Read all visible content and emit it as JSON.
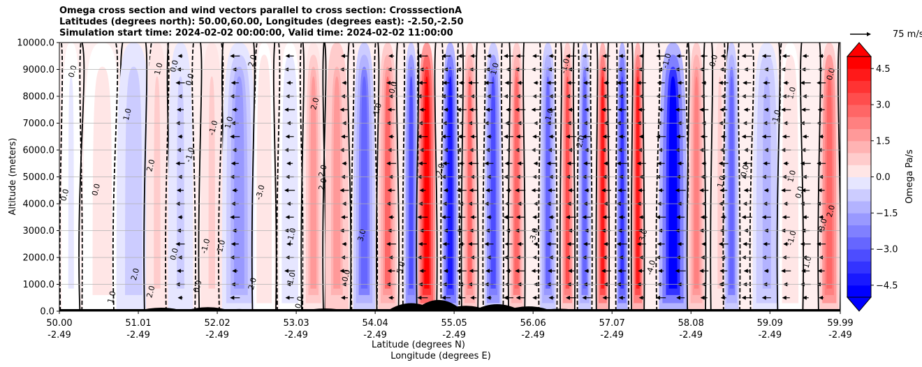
{
  "chart_data": {
    "type": "heatmap",
    "title_lines": [
      "Omega cross section and wind vectors parallel to cross section: CrosssectionA",
      "Latitudes (degrees north): 50.00,60.00, Longitudes (degrees east): -2.50,-2.50",
      "Simulation start time: 2024-02-02 00:00:00, Valid time: 2024-02-02 11:00:00"
    ],
    "ylabel": "Altitude (meters)",
    "xlabel_lines": [
      "Latitude (degrees N)",
      "Longitude (degrees E)"
    ],
    "ylim": [
      0,
      10000
    ],
    "yticks": [
      {
        "value": 0,
        "label": "0.0"
      },
      {
        "value": 1000,
        "label": "1000.0"
      },
      {
        "value": 2000,
        "label": "2000.0"
      },
      {
        "value": 3000,
        "label": "3000.0"
      },
      {
        "value": 4000,
        "label": "4000.0"
      },
      {
        "value": 5000,
        "label": "5000.0"
      },
      {
        "value": 6000,
        "label": "6000.0"
      },
      {
        "value": 7000,
        "label": "7000.0"
      },
      {
        "value": 8000,
        "label": "8000.0"
      },
      {
        "value": 9000,
        "label": "9000.0"
      },
      {
        "value": 10000,
        "label": "10000.0"
      }
    ],
    "xlim": [
      50.0,
      59.99
    ],
    "xticks": [
      {
        "value": 50.0,
        "lat": "50.00",
        "lon": "-2.49"
      },
      {
        "value": 51.01,
        "lat": "51.01",
        "lon": "-2.49"
      },
      {
        "value": 52.02,
        "lat": "52.02",
        "lon": "-2.49"
      },
      {
        "value": 53.03,
        "lat": "53.03",
        "lon": "-2.49"
      },
      {
        "value": 54.04,
        "lat": "54.04",
        "lon": "-2.49"
      },
      {
        "value": 55.05,
        "lat": "55.05",
        "lon": "-2.49"
      },
      {
        "value": 56.06,
        "lat": "56.06",
        "lon": "-2.49"
      },
      {
        "value": 57.07,
        "lat": "57.07",
        "lon": "-2.49"
      },
      {
        "value": 58.08,
        "lat": "58.08",
        "lon": "-2.49"
      },
      {
        "value": 59.09,
        "lat": "59.09",
        "lon": "-2.49"
      },
      {
        "value": 59.99,
        "lat": "59.99",
        "lon": "-2.49"
      }
    ],
    "grid": true,
    "colorbar": {
      "label": "Omega Pa/s",
      "range": [
        -5,
        5
      ],
      "ticks": [
        "4.5",
        "3.0",
        "1.5",
        "0.0",
        "−1.5",
        "−3.0",
        "−4.5"
      ],
      "tick_values": [
        4.5,
        3.0,
        1.5,
        0.0,
        -1.5,
        -3.0,
        -4.5
      ],
      "levels": 20
    },
    "quiver_key": "75 m/s",
    "bands": [
      {
        "x": 50.15,
        "w": 0.12,
        "v": -0.3
      },
      {
        "x": 50.55,
        "w": 0.25,
        "v": 0.4
      },
      {
        "x": 50.95,
        "w": 0.22,
        "v": -1.2
      },
      {
        "x": 51.25,
        "w": 0.14,
        "v": 0.8
      },
      {
        "x": 51.55,
        "w": 0.16,
        "v": -0.8
      },
      {
        "x": 51.95,
        "w": 0.14,
        "v": 0.9
      },
      {
        "x": 52.3,
        "w": 0.22,
        "v": -2.0
      },
      {
        "x": 52.62,
        "w": 0.13,
        "v": 0.5
      },
      {
        "x": 52.95,
        "w": 0.14,
        "v": -0.6
      },
      {
        "x": 53.25,
        "w": 0.13,
        "v": 1.8
      },
      {
        "x": 53.55,
        "w": 0.15,
        "v": 2.2
      },
      {
        "x": 53.9,
        "w": 0.14,
        "v": -3.0
      },
      {
        "x": 54.2,
        "w": 0.12,
        "v": 2.8
      },
      {
        "x": 54.5,
        "w": 0.09,
        "v": -3.5
      },
      {
        "x": 54.7,
        "w": 0.11,
        "v": 5.0
      },
      {
        "x": 55.0,
        "w": 0.1,
        "v": -4.5
      },
      {
        "x": 55.25,
        "w": 0.09,
        "v": 2.8
      },
      {
        "x": 55.55,
        "w": 0.11,
        "v": -3.5
      },
      {
        "x": 55.85,
        "w": 0.09,
        "v": 3.0
      },
      {
        "x": 56.25,
        "w": 0.1,
        "v": -2.8
      },
      {
        "x": 56.5,
        "w": 0.08,
        "v": 3.5
      },
      {
        "x": 56.72,
        "w": 0.08,
        "v": -3.0
      },
      {
        "x": 56.95,
        "w": 0.07,
        "v": 4.5
      },
      {
        "x": 57.2,
        "w": 0.07,
        "v": -4.0
      },
      {
        "x": 57.4,
        "w": 0.07,
        "v": 4.5
      },
      {
        "x": 57.85,
        "w": 0.18,
        "v": -4.8
      },
      {
        "x": 58.15,
        "w": 0.1,
        "v": 2.5
      },
      {
        "x": 58.45,
        "w": 0.1,
        "v": 0.8
      },
      {
        "x": 58.6,
        "w": 0.09,
        "v": -3.0
      },
      {
        "x": 59.05,
        "w": 0.18,
        "v": -1.5
      },
      {
        "x": 59.35,
        "w": 0.14,
        "v": 0.7
      },
      {
        "x": 59.85,
        "w": 0.12,
        "v": 3.2
      }
    ],
    "contour_labels": [
      {
        "text": "0.0",
        "x": 50.2,
        "alt": 8900
      },
      {
        "text": "0.0",
        "x": 50.1,
        "alt": 4300
      },
      {
        "text": "0.0",
        "x": 50.5,
        "alt": 4500
      },
      {
        "text": "1.0",
        "x": 51.3,
        "alt": 9000
      },
      {
        "text": "1.0",
        "x": 50.9,
        "alt": 7300
      },
      {
        "text": "2.0",
        "x": 51.2,
        "alt": 5400
      },
      {
        "text": "2.0",
        "x": 51.0,
        "alt": 1350
      },
      {
        "text": "2.0",
        "x": 51.2,
        "alt": 700
      },
      {
        "text": "1.0",
        "x": 50.7,
        "alt": 500
      },
      {
        "text": "0.0",
        "x": 51.5,
        "alt": 9100
      },
      {
        "text": "0.0",
        "x": 51.7,
        "alt": 8600
      },
      {
        "text": "-1.0",
        "x": 51.7,
        "alt": 5800
      },
      {
        "text": "0.0",
        "x": 51.5,
        "alt": 2100
      },
      {
        "text": "-1.0",
        "x": 51.9,
        "alt": 2400
      },
      {
        "text": "1.0",
        "x": 52.1,
        "alt": 2400
      },
      {
        "text": "0.0",
        "x": 51.8,
        "alt": 900
      },
      {
        "text": "2.0",
        "x": 52.5,
        "alt": 9300
      },
      {
        "text": "1.0",
        "x": 52.2,
        "alt": 7000
      },
      {
        "text": "-1.0",
        "x": 52.0,
        "alt": 6800
      },
      {
        "text": "-3.0",
        "x": 52.6,
        "alt": 4400
      },
      {
        "text": "2.0",
        "x": 52.5,
        "alt": 1000
      },
      {
        "text": "-1.0",
        "x": 53.0,
        "alt": 2800
      },
      {
        "text": "1.0",
        "x": 53.0,
        "alt": 1200
      },
      {
        "text": "0.0",
        "x": 53.1,
        "alt": 300
      },
      {
        "text": "2.0",
        "x": 53.3,
        "alt": 7700
      },
      {
        "text": "2.0",
        "x": 53.4,
        "alt": 5200
      },
      {
        "text": "2.0",
        "x": 53.4,
        "alt": 4700
      },
      {
        "text": "0.0",
        "x": 53.7,
        "alt": 1300
      },
      {
        "text": "0.0",
        "x": 54.3,
        "alt": 8300
      },
      {
        "text": "1.0",
        "x": 54.1,
        "alt": 7500
      },
      {
        "text": "3.0",
        "x": 53.9,
        "alt": 2800
      },
      {
        "text": "5.0",
        "x": 54.4,
        "alt": 1600
      },
      {
        "text": "-2.0",
        "x": 54.9,
        "alt": 5200
      },
      {
        "text": "1.0",
        "x": 55.6,
        "alt": 9000
      },
      {
        "text": "-1.0",
        "x": 56.5,
        "alt": 9100
      },
      {
        "text": "1.0",
        "x": 56.3,
        "alt": 7300
      },
      {
        "text": "-3.0",
        "x": 56.1,
        "alt": 2800
      },
      {
        "text": "2.0",
        "x": 56.7,
        "alt": 6300
      },
      {
        "text": "-1.0",
        "x": 57.8,
        "alt": 9300
      },
      {
        "text": "3.0",
        "x": 57.5,
        "alt": 2800
      },
      {
        "text": "-4.0",
        "x": 57.6,
        "alt": 1600
      },
      {
        "text": "0.0",
        "x": 58.4,
        "alt": 9300
      },
      {
        "text": "1.0",
        "x": 58.5,
        "alt": 4800
      },
      {
        "text": "0.0",
        "x": 58.8,
        "alt": 5200
      },
      {
        "text": "-1.0",
        "x": 59.2,
        "alt": 7200
      },
      {
        "text": "1.0",
        "x": 59.4,
        "alt": 8100
      },
      {
        "text": "0.0",
        "x": 59.5,
        "alt": 4400
      },
      {
        "text": "-1.0",
        "x": 59.4,
        "alt": 2700
      },
      {
        "text": "1.0",
        "x": 59.6,
        "alt": 1800
      },
      {
        "text": "2.0",
        "x": 59.9,
        "alt": 3700
      },
      {
        "text": "3.0",
        "x": 59.8,
        "alt": 3200
      },
      {
        "text": "0.0",
        "x": 59.9,
        "alt": 8800
      },
      {
        "text": "1.0",
        "x": 59.4,
        "alt": 5000
      }
    ],
    "wind_rows": [
      9500,
      9000,
      8500,
      8000,
      7500,
      7000,
      6500,
      6000,
      5500,
      5000,
      4500,
      4000,
      3500,
      3000,
      2500,
      2000,
      1500,
      1000,
      500
    ],
    "wind_cols": [
      51.55,
      52.25,
      52.95,
      53.65,
      54.25,
      54.65,
      54.95,
      55.15,
      55.3,
      55.5,
      55.75,
      55.9,
      56.1,
      56.3,
      56.55,
      56.75,
      57.0,
      57.2,
      57.45,
      57.7,
      57.95,
      58.25,
      58.5,
      58.8,
      59.05,
      59.3,
      59.55,
      59.75
    ],
    "terrain": [
      {
        "x": 50.6,
        "h": 60
      },
      {
        "x": 51.3,
        "h": 130
      },
      {
        "x": 51.9,
        "h": 150
      },
      {
        "x": 52.3,
        "h": 80
      },
      {
        "x": 53.4,
        "h": 100
      },
      {
        "x": 54.5,
        "h": 300
      },
      {
        "x": 54.85,
        "h": 420
      },
      {
        "x": 55.2,
        "h": 200
      },
      {
        "x": 55.6,
        "h": 260
      },
      {
        "x": 56.0,
        "h": 180
      },
      {
        "x": 56.4,
        "h": 90
      },
      {
        "x": 57.2,
        "h": 60
      }
    ]
  }
}
